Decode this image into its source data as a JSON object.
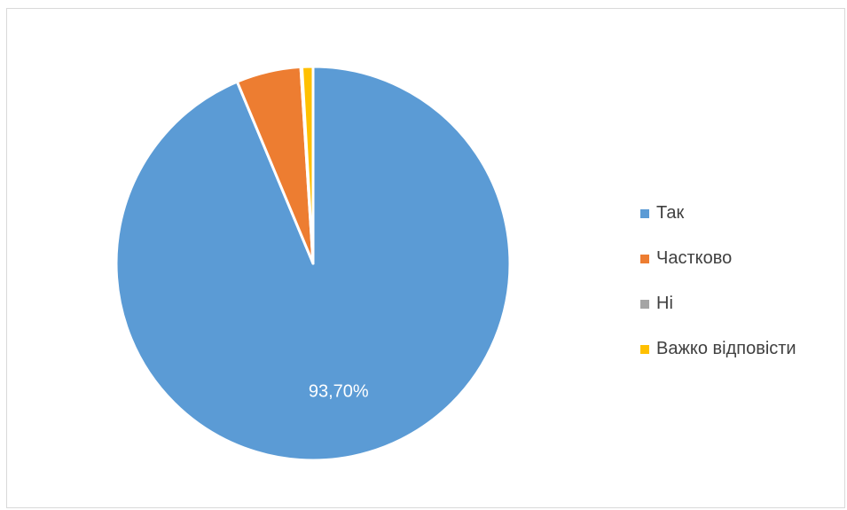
{
  "chart_data": {
    "type": "pie",
    "categories": [
      "Так",
      "Частково",
      "Ні",
      "Важко відповісти"
    ],
    "values": [
      93.7,
      5.3,
      0.1,
      0.9
    ],
    "colors": [
      "#5b9bd5",
      "#ed7d31",
      "#a5a5a5",
      "#ffc000"
    ],
    "data_labels": [
      "93,70%",
      "",
      "",
      ""
    ],
    "legend_position": "right"
  }
}
